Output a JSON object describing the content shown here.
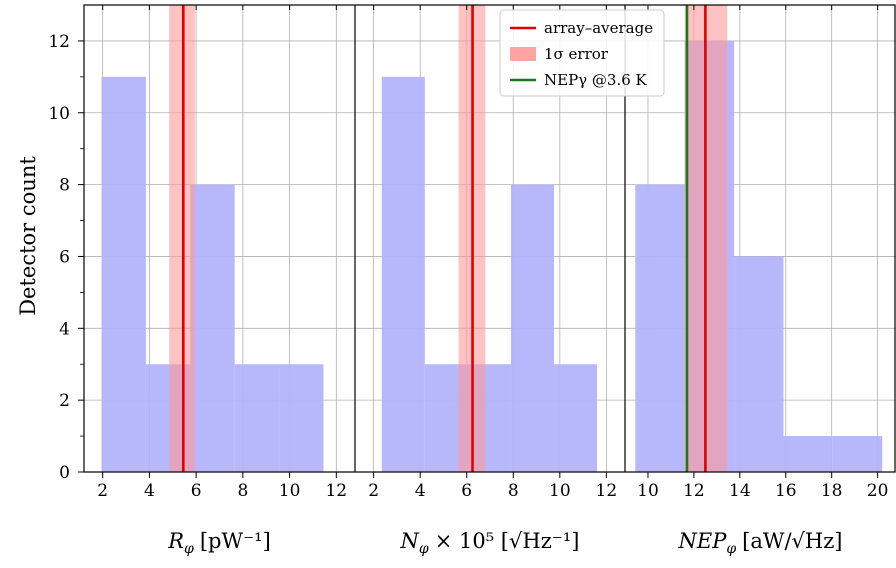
{
  "chart_data": {
    "type": "bar",
    "ylabel": "Detector count",
    "ylim": [
      0,
      13
    ],
    "yticks": [
      0,
      2,
      4,
      6,
      8,
      10,
      12
    ],
    "grid": true,
    "legend_position": "top-center",
    "colors": {
      "histogram": "#b3b3fb",
      "average_line": "#e00000",
      "error_band": "#ff9999",
      "nep_line": "#1a7a1a"
    },
    "legend": [
      {
        "label": "array–average",
        "kind": "line",
        "color": "#e00000"
      },
      {
        "label": "1σ error",
        "kind": "patch",
        "color": "#ff9999"
      },
      {
        "label": "NEPγ @3.6 K",
        "kind": "line",
        "color": "#1a7a1a"
      }
    ],
    "panels": [
      {
        "xlabel_symbol": "R",
        "xlabel_subscript": "φ",
        "xlabel_rest": "[pW⁻¹]",
        "xlim": [
          1.2,
          12.8
        ],
        "xticks": [
          2,
          4,
          6,
          8,
          10,
          12
        ],
        "bins": [
          {
            "start": 1.95,
            "end": 3.85,
            "count": 11
          },
          {
            "start": 3.85,
            "end": 5.75,
            "count": 3
          },
          {
            "start": 5.75,
            "end": 7.65,
            "count": 8
          },
          {
            "start": 7.65,
            "end": 9.55,
            "count": 3
          },
          {
            "start": 9.55,
            "end": 11.45,
            "count": 3
          }
        ],
        "average": 5.45,
        "error_low": 4.85,
        "error_high": 5.95
      },
      {
        "xlabel_symbol": "N",
        "xlabel_subscript": "φ",
        "xlabel_rest": "× 10⁵ [√Hz⁻¹]",
        "xlim": [
          1.2,
          12.8
        ],
        "xticks": [
          2,
          4,
          6,
          8,
          10,
          12
        ],
        "bins": [
          {
            "start": 2.35,
            "end": 4.2,
            "count": 11
          },
          {
            "start": 4.2,
            "end": 6.05,
            "count": 3
          },
          {
            "start": 6.05,
            "end": 7.9,
            "count": 3
          },
          {
            "start": 7.9,
            "end": 9.75,
            "count": 8
          },
          {
            "start": 9.75,
            "end": 11.6,
            "count": 3
          }
        ],
        "average": 6.25,
        "error_low": 5.65,
        "error_high": 6.8
      },
      {
        "xlabel_symbol": "NEP",
        "xlabel_subscript": "φ",
        "xlabel_rest": "[aW/√Hz]",
        "xlim": [
          9.0,
          20.8
        ],
        "xticks": [
          10,
          12,
          14,
          16,
          18,
          20
        ],
        "bins": [
          {
            "start": 9.45,
            "end": 11.6,
            "count": 8
          },
          {
            "start": 11.6,
            "end": 13.75,
            "count": 12
          },
          {
            "start": 13.75,
            "end": 15.9,
            "count": 6
          },
          {
            "start": 15.9,
            "end": 18.05,
            "count": 1
          },
          {
            "start": 18.05,
            "end": 20.2,
            "count": 1
          }
        ],
        "average": 12.5,
        "error_low": 11.6,
        "error_high": 13.45,
        "nep_gamma": 11.7
      }
    ]
  }
}
